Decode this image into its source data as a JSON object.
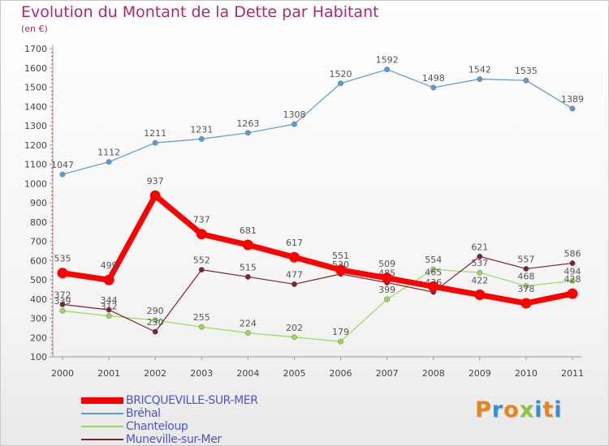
{
  "header": {
    "title": "Evolution du Montant de la Dette par Habitant",
    "subtitle": "(en €)"
  },
  "brand": {
    "letters": [
      "P",
      "r",
      "o",
      "x",
      "i",
      "t",
      "i"
    ],
    "colors": [
      "#e8851b",
      "#3a8fd0",
      "#e8851b",
      "#8bc53f",
      "#3a8fd0",
      "#e8851b",
      "#3a8fd0"
    ]
  },
  "chart_data": {
    "type": "line",
    "title": "Evolution du Montant de la Dette par Habitant",
    "subtitle": "(en €)",
    "xlabel": "",
    "ylabel": "",
    "x": [
      2000,
      2001,
      2002,
      2003,
      2004,
      2005,
      2006,
      2007,
      2008,
      2009,
      2010,
      2011
    ],
    "ylim": [
      100,
      1700
    ],
    "yticks": [
      100,
      200,
      300,
      400,
      500,
      600,
      700,
      800,
      900,
      1000,
      1100,
      1200,
      1300,
      1400,
      1500,
      1600,
      1700
    ],
    "grid": false,
    "legend_position": "bottom-left",
    "series": [
      {
        "name": "Bréhal",
        "color": "#5b9bd5",
        "values": [
          1047,
          1112,
          1211,
          1231,
          1263,
          1308,
          1520,
          1592,
          1498,
          1542,
          1535,
          1389
        ]
      },
      {
        "name": "Chanteloup",
        "color": "#9ad75b",
        "values": [
          339,
          312,
          290,
          255,
          224,
          202,
          179,
          399,
          554,
          537,
          468,
          494
        ]
      },
      {
        "name": "Muneville-sur-Mer",
        "color": "#7a2530",
        "values": [
          372,
          344,
          230,
          552,
          515,
          477,
          530,
          485,
          436,
          621,
          557,
          586
        ]
      },
      {
        "name": "BRICQUEVILLE-SUR-MER",
        "color": "#ff0000",
        "values": [
          535,
          499,
          937,
          737,
          681,
          617,
          551,
          509,
          465,
          422,
          378,
          428
        ]
      }
    ],
    "legend_order": [
      "BRICQUEVILLE-SUR-MER",
      "Bréhal",
      "Chanteloup",
      "Muneville-sur-Mer"
    ]
  }
}
